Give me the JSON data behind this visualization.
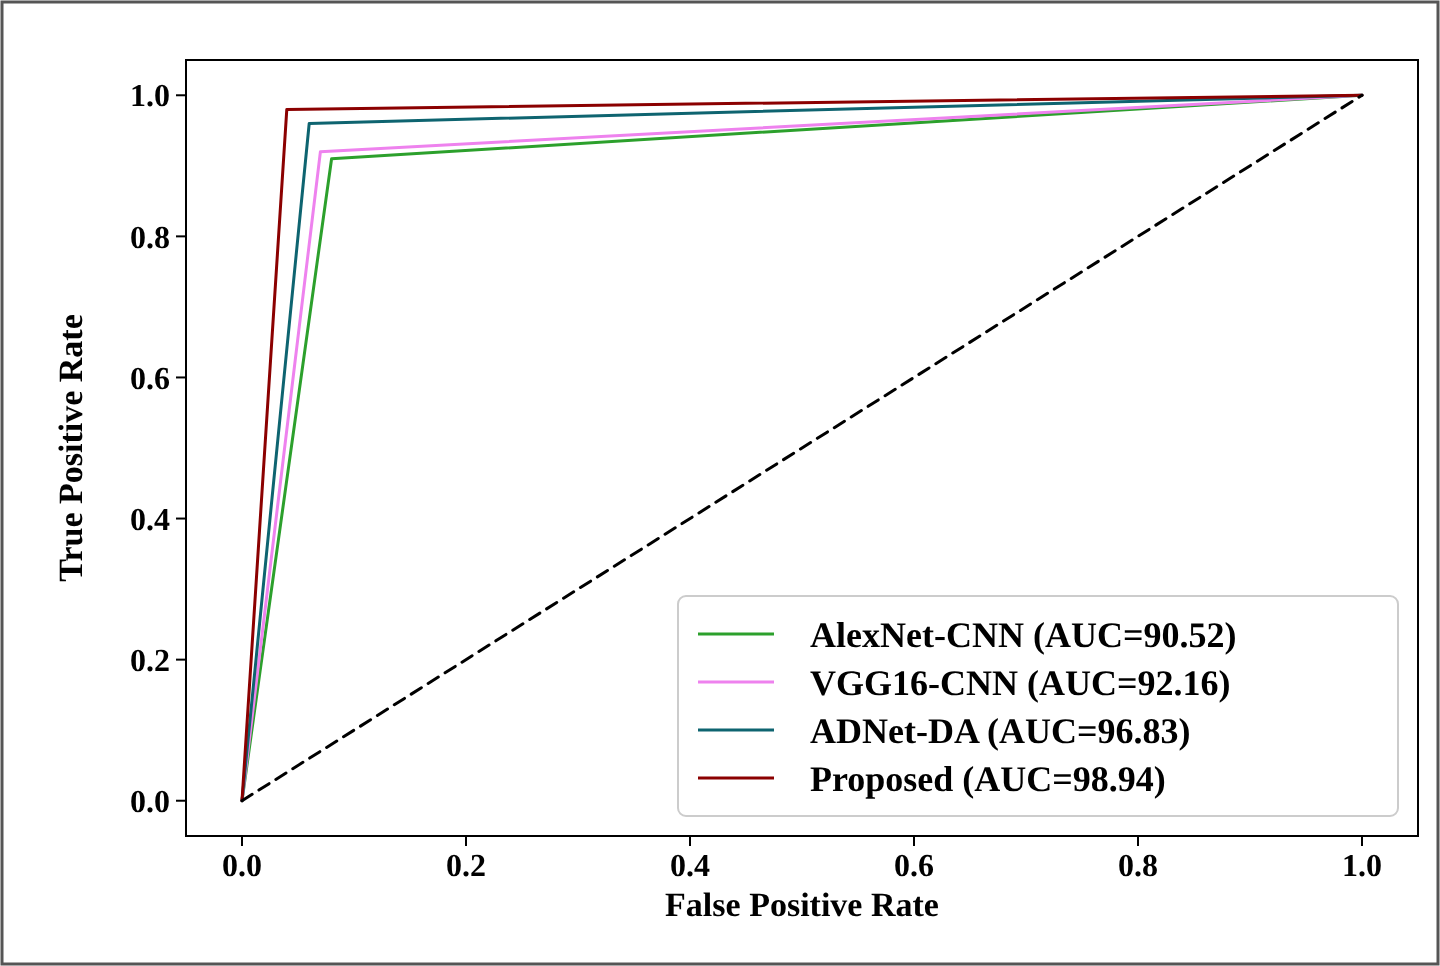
{
  "chart_data": {
    "type": "line",
    "xlabel": "False Positive Rate",
    "ylabel": "True Positive Rate",
    "xlim": [
      -0.05,
      1.05
    ],
    "ylim": [
      -0.05,
      1.05
    ],
    "xticks": [
      {
        "value": 0,
        "label": "0.0"
      },
      {
        "value": 0.2,
        "label": "0.2"
      },
      {
        "value": 0.4,
        "label": "0.4"
      },
      {
        "value": 0.6,
        "label": "0.6"
      },
      {
        "value": 0.8,
        "label": "0.8"
      },
      {
        "value": 1,
        "label": "1.0"
      }
    ],
    "yticks": [
      {
        "value": 0,
        "label": "0.0"
      },
      {
        "value": 0.2,
        "label": "0.2"
      },
      {
        "value": 0.4,
        "label": "0.4"
      },
      {
        "value": 0.6,
        "label": "0.6"
      },
      {
        "value": 0.8,
        "label": "0.8"
      },
      {
        "value": 1,
        "label": "1.0"
      }
    ],
    "legend": "bottom right",
    "grid": false,
    "series": [
      {
        "name": "AlexNet-CNN (AUC=90.52)",
        "color": "#2ca02c",
        "x": [
          0,
          0.08,
          1
        ],
        "values": [
          0,
          0.91,
          1
        ]
      },
      {
        "name": "VGG16-CNN (AUC=92.16)",
        "color": "#ee82ee",
        "x": [
          0,
          0.07,
          1
        ],
        "values": [
          0,
          0.92,
          1
        ]
      },
      {
        "name": "ADNet-DA (AUC=96.83)",
        "color": "#0e6470",
        "x": [
          0,
          0.06,
          1
        ],
        "values": [
          0,
          0.96,
          1
        ]
      },
      {
        "name": "Proposed (AUC=98.94)",
        "color": "#8b0000",
        "x": [
          0,
          0.04,
          1
        ],
        "values": [
          0,
          0.98,
          1
        ]
      },
      {
        "color": "#000000",
        "line_style": "dashed",
        "x": [
          0,
          1
        ],
        "values": [
          0,
          1
        ]
      }
    ]
  }
}
